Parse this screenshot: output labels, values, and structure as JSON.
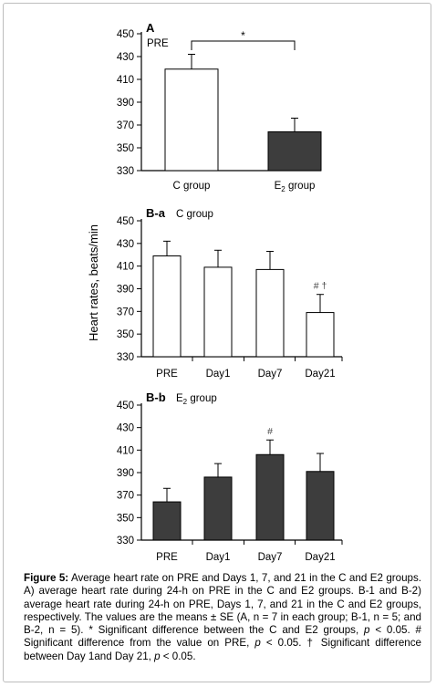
{
  "panels": {
    "a": {
      "letter": "A",
      "label": "PRE",
      "subscript": ""
    },
    "ba": {
      "letter": "B-a",
      "label": "C group",
      "subscript": ""
    },
    "bb": {
      "letter": "B-b",
      "label": "E",
      "subscript": "2",
      "label_suffix": " group"
    }
  },
  "shared_ylabel": "Heart rates, beats/min",
  "colors": {
    "white_bar": "#ffffff",
    "dark_bar": "#3d3d3d",
    "stroke": "#000000"
  },
  "chart_data": [
    {
      "type": "bar",
      "panel": "A",
      "categories": [
        "C group",
        "E2 group"
      ],
      "category_labels": [
        {
          "text": "C group",
          "subscript": "",
          "suffix": ""
        },
        {
          "text": "E",
          "subscript": "2",
          "suffix": " group"
        }
      ],
      "values": [
        419,
        364
      ],
      "errors": [
        13,
        12
      ],
      "bar_fill": [
        "white",
        "dark"
      ],
      "ylim": [
        330,
        450
      ],
      "yticks": [
        330,
        350,
        370,
        390,
        410,
        430,
        450
      ],
      "annotations": [
        {
          "type": "bracket",
          "from": 0,
          "to": 1,
          "text": "*"
        }
      ]
    },
    {
      "type": "bar",
      "panel": "B-a",
      "categories": [
        "PRE",
        "Day1",
        "Day7",
        "Day21"
      ],
      "values": [
        419,
        409,
        407,
        369
      ],
      "errors": [
        13,
        15,
        16,
        16
      ],
      "bar_fill": [
        "white",
        "white",
        "white",
        "white"
      ],
      "ylim": [
        330,
        450
      ],
      "yticks": [
        330,
        350,
        370,
        390,
        410,
        430,
        450
      ],
      "annotations": [
        {
          "type": "label",
          "index": 3,
          "text": "# †"
        }
      ]
    },
    {
      "type": "bar",
      "panel": "B-b",
      "categories": [
        "PRE",
        "Day1",
        "Day7",
        "Day21"
      ],
      "values": [
        364,
        386,
        406,
        391
      ],
      "errors": [
        12,
        12,
        13,
        16
      ],
      "bar_fill": [
        "dark",
        "dark",
        "dark",
        "dark"
      ],
      "ylim": [
        330,
        450
      ],
      "yticks": [
        330,
        350,
        370,
        390,
        410,
        430,
        450
      ],
      "annotations": [
        {
          "type": "label",
          "index": 2,
          "text": "#"
        }
      ]
    }
  ],
  "caption": {
    "label": "Figure 5:",
    "s1": " Average heart rate on PRE and Days 1, 7, and 21 in the C and E2 groups. A) average heart rate during 24-h on PRE in the C and E2 groups. B-1 and B-2) average heart rate during  24-h on PRE, Days 1, 7, and 21 in the C and E2 groups, respectively. The values are the means ± SE (A, n = 7 in each group; B-1, n = 5; and B-2, n = 5). * Significant difference between the C and E2 groups, ",
    "p1": "p",
    "s2": " < 0.05. # Significant difference from the value on PRE, ",
    "p2": "p",
    "s3": " < 0.05. † Significant difference between Day 1and Day 21, ",
    "p3": "p",
    "s4": " < 0.05."
  }
}
